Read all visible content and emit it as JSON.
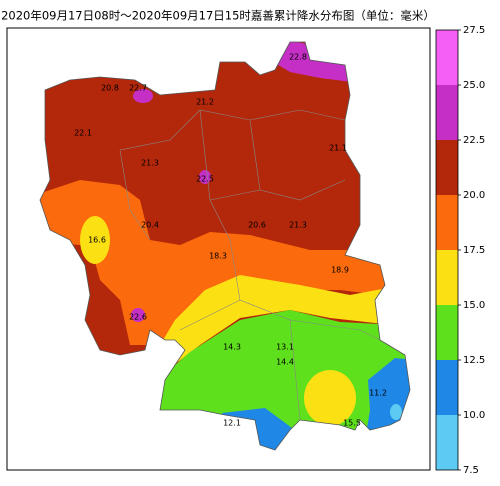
{
  "title": "2020年09月17日08时～2020年09月17日15时嘉善累计降水分布图（单位：毫米）",
  "station_values": [
    20.8,
    22.7,
    21.2,
    22.8,
    22.1,
    21.3,
    22.5,
    21.1,
    20.4,
    20.6,
    21.3,
    16.6,
    18.3,
    18.9,
    22.6,
    14.3,
    13.1,
    14.4,
    11.2,
    12.1,
    15.5
  ],
  "colorbar": {
    "range": [
      7.5,
      27.5
    ],
    "ticks": [
      7.5,
      {
        "value": 10,
        "label": "10.0"
      },
      12.5,
      {
        "value": 15,
        "label": "15.0"
      },
      17.5,
      {
        "value": 20,
        "label": "20.0"
      },
      22.5,
      {
        "value": 25,
        "label": "25.0"
      },
      27.5
    ],
    "colors": [
      "#5ccaf2",
      "#1f88e6",
      "#5fe01c",
      "#fbe014",
      "#fb6a0c",
      "#b3270a",
      "#c52fc6",
      "#f55ff3"
    ]
  }
}
